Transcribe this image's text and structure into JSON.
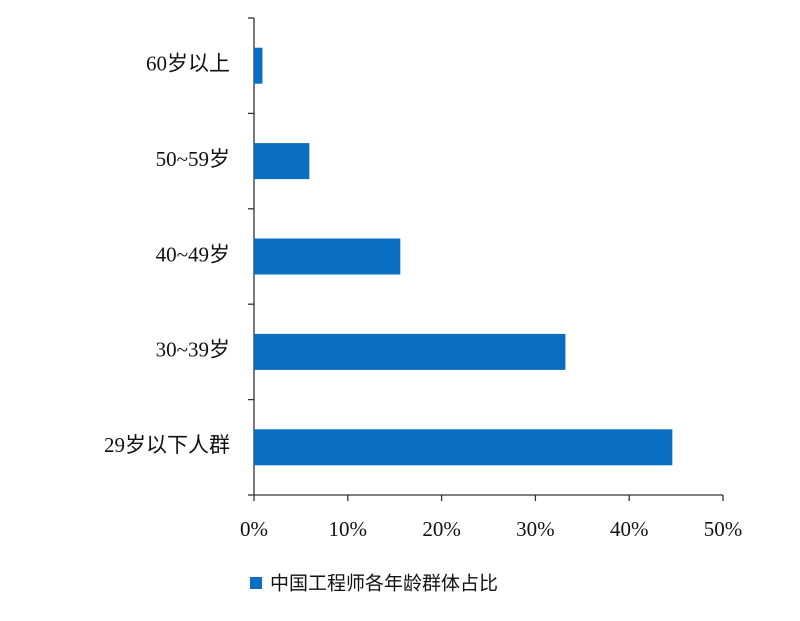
{
  "chart_data": {
    "type": "barh",
    "categories": [
      "60岁以上",
      "50~59岁",
      "40~49岁",
      "30~39岁",
      "29岁以下人群"
    ],
    "series": [
      {
        "name": "中国工程师各年龄群体占比",
        "color": "#0a6fc2",
        "values": [
          0.9,
          5.9,
          15.6,
          33.2,
          44.6
        ]
      }
    ],
    "xlim": [
      0,
      50
    ],
    "xticks": [
      {
        "value": 0,
        "label": "0%"
      },
      {
        "value": 10,
        "label": "10%"
      },
      {
        "value": 20,
        "label": "20%"
      },
      {
        "value": 30,
        "label": "30%"
      },
      {
        "value": 40,
        "label": "40%"
      },
      {
        "value": 50,
        "label": "50%"
      }
    ],
    "legend": "bottom"
  }
}
